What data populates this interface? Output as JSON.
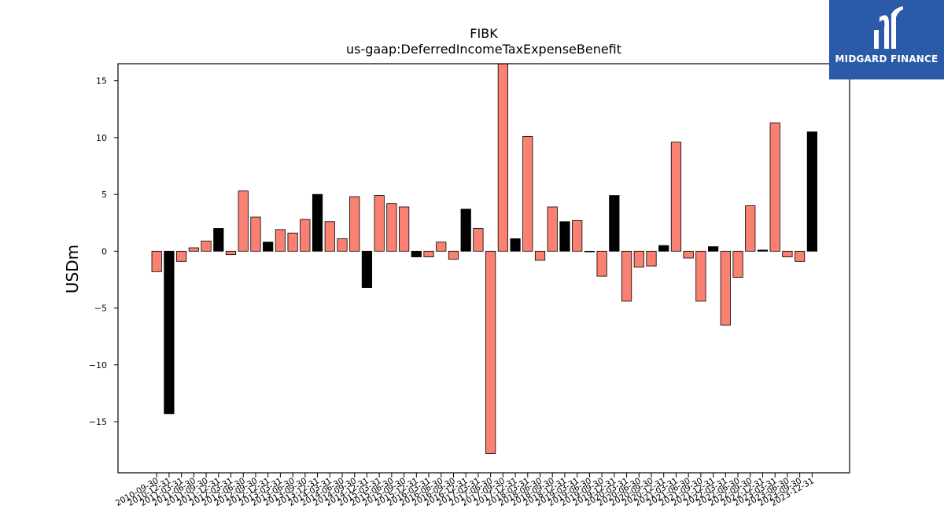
{
  "chart_data": {
    "type": "bar",
    "title": "FIBK",
    "subtitle": "us-gaap:DeferredIncomeTaxExpenseBenefit",
    "ylabel": "USDm",
    "xlabel": "",
    "ylim": [
      -19.5,
      16.5
    ],
    "yticks": [
      -15,
      -10,
      -5,
      0,
      5,
      10,
      15
    ],
    "ytick_labels": [
      "−15",
      "−10",
      "−5",
      "0",
      "5",
      "10",
      "15"
    ],
    "grid": false,
    "colors": {
      "quarter": "#fa8072",
      "annual": "#000000"
    },
    "categories": [
      "2010-09-30",
      "2010-12-31",
      "2011-03-31",
      "2011-06-30",
      "2011-09-30",
      "2011-12-31",
      "2012-03-31",
      "2012-06-30",
      "2012-09-30",
      "2012-12-31",
      "2013-03-31",
      "2013-06-30",
      "2013-09-30",
      "2013-12-31",
      "2014-03-31",
      "2014-06-30",
      "2014-09-30",
      "2014-12-31",
      "2015-03-31",
      "2015-06-30",
      "2015-09-30",
      "2015-12-31",
      "2016-03-31",
      "2016-06-30",
      "2016-09-30",
      "2016-12-31",
      "2017-03-31",
      "2017-06-30",
      "2017-09-30",
      "2017-12-31",
      "2018-03-31",
      "2018-06-30",
      "2018-09-30",
      "2018-12-31",
      "2019-03-31",
      "2019-06-30",
      "2019-09-30",
      "2019-12-31",
      "2020-03-31",
      "2020-06-30",
      "2020-09-30",
      "2020-12-31",
      "2021-03-31",
      "2021-06-30",
      "2021-09-30",
      "2021-12-31",
      "2022-03-31",
      "2022-06-30",
      "2022-09-30",
      "2022-12-31",
      "2023-03-31",
      "2023-06-30",
      "2023-09-30",
      "2023-12-31"
    ],
    "values": [
      -1.8,
      -14.3,
      -0.9,
      0.3,
      0.9,
      2.0,
      -0.3,
      5.3,
      3.0,
      0.8,
      1.9,
      1.6,
      2.8,
      5.0,
      2.6,
      1.1,
      4.8,
      -3.2,
      4.9,
      4.2,
      3.9,
      -0.5,
      -0.5,
      0.8,
      -0.7,
      3.7,
      2.0,
      -17.8,
      16.5,
      1.1,
      10.1,
      -0.8,
      3.9,
      2.6,
      2.7,
      0.0,
      -2.2,
      4.9,
      -4.4,
      -1.4,
      -1.3,
      0.5,
      9.6,
      -0.6,
      -4.4,
      0.4,
      -6.5,
      -2.3,
      4.0,
      0.1,
      11.3,
      -0.5,
      -0.9,
      10.5
    ],
    "kinds": [
      "q",
      "a",
      "q",
      "q",
      "q",
      "a",
      "q",
      "q",
      "q",
      "a",
      "q",
      "q",
      "q",
      "a",
      "q",
      "q",
      "q",
      "a",
      "q",
      "q",
      "q",
      "a",
      "q",
      "q",
      "q",
      "a",
      "q",
      "q",
      "q",
      "a",
      "q",
      "q",
      "q",
      "a",
      "q",
      "q",
      "q",
      "a",
      "q",
      "q",
      "q",
      "a",
      "q",
      "q",
      "q",
      "a",
      "q",
      "q",
      "q",
      "a",
      "q",
      "q",
      "q",
      "a"
    ]
  },
  "logo": {
    "text": "MIDGARD FINANCE"
  }
}
